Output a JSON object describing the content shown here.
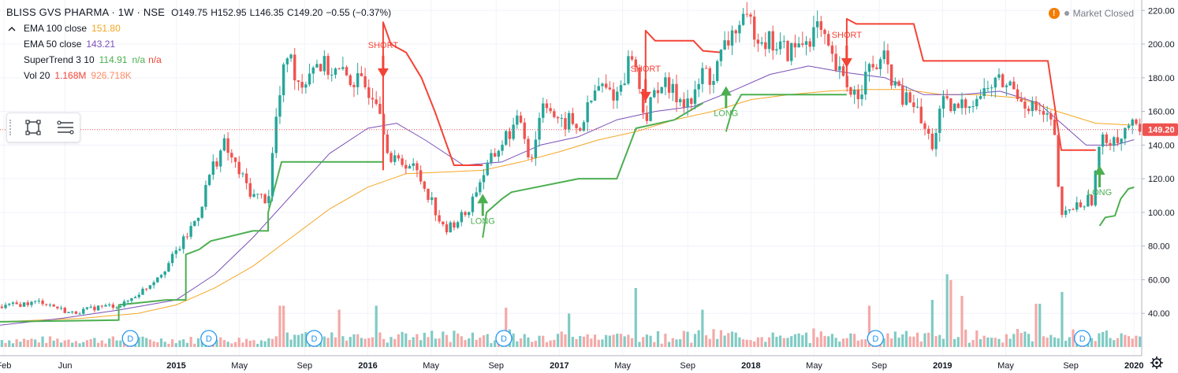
{
  "header": {
    "symbol": "BLISS GVS PHARMA · 1W · NSE",
    "open": "O149.75",
    "high": "H152.95",
    "low": "L146.35",
    "close": "C149.20",
    "change": "−0.55 (−0.37%)"
  },
  "status": {
    "alert_icon": "!",
    "text": "Market Closed"
  },
  "indicators": [
    {
      "name": "EMA 100 close",
      "values": [
        "151.80"
      ],
      "color": "#f5a623"
    },
    {
      "name": "EMA 50 close",
      "values": [
        "143.21"
      ],
      "color": "#7b4fb8"
    },
    {
      "name": "SuperTrend 3 10",
      "values": [
        "114.91",
        "n/a",
        "n/a"
      ],
      "color": "#4caf50",
      "alt_color": "#f44336"
    },
    {
      "name": "Vol 20",
      "values": [
        "1.168M",
        "926.718K"
      ],
      "color": "#f44336",
      "alt_color": "#ff8a65"
    }
  ],
  "colors": {
    "up": "#26a69a",
    "down": "#ef5350",
    "grid": "#f0f3fa",
    "price_line": "#ef5350",
    "axis_text": "#787b86"
  },
  "chart_data": {
    "type": "candlestick",
    "title": "BLISS GVS PHARMA · 1W · NSE",
    "ylim": [
      20,
      222
    ],
    "y_ticks": [
      40,
      60,
      80,
      100,
      120,
      140,
      160,
      180,
      200,
      220
    ],
    "y_tick_labels": [
      "40.00",
      "60.00",
      "80.00",
      "100.00",
      "120.00",
      "140.00",
      "160.00",
      "180.00",
      "200.00",
      "220.00"
    ],
    "last_price": 149.2,
    "last_price_label": "149.20",
    "x_start": 2014.08,
    "x_end": 2020.04,
    "x_ticks": [
      {
        "t": 2014.1,
        "label": "Feb",
        "bold": false
      },
      {
        "t": 2014.42,
        "label": "Jun",
        "bold": false
      },
      {
        "t": 2015.0,
        "label": "2015",
        "bold": true
      },
      {
        "t": 2015.33,
        "label": "May",
        "bold": false
      },
      {
        "t": 2015.67,
        "label": "Sep",
        "bold": false
      },
      {
        "t": 2016.0,
        "label": "2016",
        "bold": true
      },
      {
        "t": 2016.33,
        "label": "May",
        "bold": false
      },
      {
        "t": 2016.67,
        "label": "Sep",
        "bold": false
      },
      {
        "t": 2017.0,
        "label": "2017",
        "bold": true
      },
      {
        "t": 2017.33,
        "label": "May",
        "bold": false
      },
      {
        "t": 2017.67,
        "label": "Sep",
        "bold": false
      },
      {
        "t": 2018.0,
        "label": "2018",
        "bold": true
      },
      {
        "t": 2018.33,
        "label": "May",
        "bold": false
      },
      {
        "t": 2018.67,
        "label": "Sep",
        "bold": false
      },
      {
        "t": 2019.0,
        "label": "2019",
        "bold": true
      },
      {
        "t": 2019.33,
        "label": "May",
        "bold": false
      },
      {
        "t": 2019.67,
        "label": "Sep",
        "bold": false
      },
      {
        "t": 2020.0,
        "label": "2020",
        "bold": true
      }
    ],
    "close_anchors": [
      [
        2014.08,
        44
      ],
      [
        2014.3,
        47
      ],
      [
        2014.45,
        40
      ],
      [
        2014.6,
        44
      ],
      [
        2014.72,
        45
      ],
      [
        2014.85,
        56
      ],
      [
        2014.95,
        68
      ],
      [
        2015.05,
        85
      ],
      [
        2015.12,
        100
      ],
      [
        2015.18,
        125
      ],
      [
        2015.25,
        140
      ],
      [
        2015.32,
        125
      ],
      [
        2015.4,
        110
      ],
      [
        2015.48,
        108
      ],
      [
        2015.52,
        155
      ],
      [
        2015.58,
        195
      ],
      [
        2015.65,
        175
      ],
      [
        2015.72,
        190
      ],
      [
        2015.8,
        185
      ],
      [
        2015.9,
        180
      ],
      [
        2015.98,
        175
      ],
      [
        2016.05,
        170
      ],
      [
        2016.12,
        130
      ],
      [
        2016.2,
        130
      ],
      [
        2016.25,
        125
      ],
      [
        2016.33,
        108
      ],
      [
        2016.4,
        88
      ],
      [
        2016.46,
        95
      ],
      [
        2016.52,
        100
      ],
      [
        2016.58,
        118
      ],
      [
        2016.65,
        132
      ],
      [
        2016.72,
        145
      ],
      [
        2016.8,
        155
      ],
      [
        2016.85,
        130
      ],
      [
        2016.92,
        170
      ],
      [
        2017.0,
        150
      ],
      [
        2017.05,
        155
      ],
      [
        2017.1,
        148
      ],
      [
        2017.2,
        175
      ],
      [
        2017.3,
        170
      ],
      [
        2017.38,
        195
      ],
      [
        2017.45,
        155
      ],
      [
        2017.52,
        178
      ],
      [
        2017.6,
        170
      ],
      [
        2017.7,
        165
      ],
      [
        2017.75,
        185
      ],
      [
        2017.8,
        178
      ],
      [
        2017.85,
        195
      ],
      [
        2017.92,
        210
      ],
      [
        2018.0,
        212
      ],
      [
        2018.05,
        205
      ],
      [
        2018.12,
        200
      ],
      [
        2018.2,
        195
      ],
      [
        2018.28,
        202
      ],
      [
        2018.35,
        210
      ],
      [
        2018.42,
        190
      ],
      [
        2018.48,
        178
      ],
      [
        2018.55,
        170
      ],
      [
        2018.62,
        185
      ],
      [
        2018.7,
        190
      ],
      [
        2018.78,
        168
      ],
      [
        2018.85,
        165
      ],
      [
        2018.9,
        150
      ],
      [
        2018.95,
        140
      ],
      [
        2019.0,
        165
      ],
      [
        2019.05,
        160
      ],
      [
        2019.12,
        165
      ],
      [
        2019.2,
        170
      ],
      [
        2019.28,
        178
      ],
      [
        2019.36,
        175
      ],
      [
        2019.44,
        165
      ],
      [
        2019.5,
        160
      ],
      [
        2019.55,
        155
      ],
      [
        2019.58,
        150
      ],
      [
        2019.62,
        95
      ],
      [
        2019.66,
        102
      ],
      [
        2019.72,
        105
      ],
      [
        2019.78,
        108
      ],
      [
        2019.82,
        140
      ],
      [
        2019.88,
        145
      ],
      [
        2019.94,
        145
      ],
      [
        2019.97,
        153
      ],
      [
        2020.0,
        149
      ]
    ],
    "series": [
      {
        "name": "EMA 100 close",
        "type": "line",
        "color": "#f5a623",
        "points": [
          [
            2014.08,
            35
          ],
          [
            2014.5,
            37
          ],
          [
            2014.8,
            40
          ],
          [
            2015.0,
            45
          ],
          [
            2015.2,
            55
          ],
          [
            2015.4,
            68
          ],
          [
            2015.6,
            85
          ],
          [
            2015.8,
            102
          ],
          [
            2016.0,
            115
          ],
          [
            2016.2,
            123
          ],
          [
            2016.4,
            124
          ],
          [
            2016.6,
            125
          ],
          [
            2016.8,
            130
          ],
          [
            2017.0,
            136
          ],
          [
            2017.2,
            143
          ],
          [
            2017.4,
            148
          ],
          [
            2017.6,
            155
          ],
          [
            2017.8,
            160
          ],
          [
            2018.0,
            167
          ],
          [
            2018.2,
            170
          ],
          [
            2018.4,
            172
          ],
          [
            2018.6,
            173
          ],
          [
            2018.8,
            173
          ],
          [
            2019.0,
            170
          ],
          [
            2019.2,
            170
          ],
          [
            2019.4,
            168
          ],
          [
            2019.6,
            160
          ],
          [
            2019.8,
            153
          ],
          [
            2020.0,
            151.8
          ]
        ]
      },
      {
        "name": "EMA 50 close",
        "type": "line",
        "color": "#7b4fb8",
        "points": [
          [
            2014.08,
            33
          ],
          [
            2014.4,
            37
          ],
          [
            2014.7,
            42
          ],
          [
            2015.0,
            48
          ],
          [
            2015.2,
            63
          ],
          [
            2015.4,
            85
          ],
          [
            2015.6,
            110
          ],
          [
            2015.8,
            135
          ],
          [
            2016.0,
            150
          ],
          [
            2016.15,
            153
          ],
          [
            2016.3,
            143
          ],
          [
            2016.5,
            128
          ],
          [
            2016.7,
            130
          ],
          [
            2016.9,
            140
          ],
          [
            2017.1,
            145
          ],
          [
            2017.3,
            155
          ],
          [
            2017.5,
            160
          ],
          [
            2017.7,
            163
          ],
          [
            2017.9,
            172
          ],
          [
            2018.1,
            182
          ],
          [
            2018.3,
            187
          ],
          [
            2018.5,
            183
          ],
          [
            2018.7,
            180
          ],
          [
            2018.9,
            170
          ],
          [
            2019.1,
            170
          ],
          [
            2019.3,
            172
          ],
          [
            2019.5,
            165
          ],
          [
            2019.6,
            155
          ],
          [
            2019.75,
            140
          ],
          [
            2019.9,
            140
          ],
          [
            2020.0,
            143.21
          ]
        ]
      },
      {
        "name": "SuperTrend (long)",
        "type": "step",
        "color": "#4caf50",
        "points": [
          [
            2014.08,
            35
          ],
          [
            2014.7,
            36
          ],
          [
            2014.7,
            45
          ],
          [
            2014.95,
            48
          ],
          [
            2015.05,
            48
          ],
          [
            2015.05,
            75
          ],
          [
            2015.12,
            78
          ],
          [
            2015.18,
            83
          ],
          [
            2015.4,
            89
          ],
          [
            2015.48,
            89
          ],
          [
            2015.48,
            100
          ],
          [
            2015.55,
            130
          ],
          [
            2016.08,
            130
          ],
          [
            2016.08,
            null
          ],
          [
            2016.6,
            85
          ],
          [
            2016.62,
            100
          ],
          [
            2016.7,
            108
          ],
          [
            2016.75,
            112
          ],
          [
            2017.1,
            120
          ],
          [
            2017.3,
            120
          ],
          [
            2017.4,
            150
          ],
          [
            2017.6,
            155
          ],
          [
            2017.75,
            165
          ],
          [
            2017.8,
            null
          ],
          [
            2017.87,
            148
          ],
          [
            2017.9,
            160
          ],
          [
            2017.95,
            170
          ],
          [
            2018.5,
            170
          ],
          [
            2018.5,
            null
          ],
          [
            2019.82,
            92
          ],
          [
            2019.85,
            97
          ],
          [
            2019.9,
            98
          ],
          [
            2019.93,
            108
          ],
          [
            2019.97,
            114
          ],
          [
            2020.0,
            114.91
          ]
        ]
      },
      {
        "name": "SuperTrend (short)",
        "type": "step",
        "color": "#f44336",
        "points": [
          [
            2016.08,
            125
          ],
          [
            2016.08,
            213
          ],
          [
            2016.12,
            200
          ],
          [
            2016.2,
            195
          ],
          [
            2016.28,
            180
          ],
          [
            2016.35,
            160
          ],
          [
            2016.45,
            128
          ],
          [
            2016.6,
            128
          ],
          [
            2016.6,
            null
          ],
          [
            2017.45,
            165
          ],
          [
            2017.45,
            208
          ],
          [
            2017.5,
            202
          ],
          [
            2017.7,
            202
          ],
          [
            2017.75,
            196
          ],
          [
            2017.85,
            195
          ],
          [
            2017.87,
            null
          ],
          [
            2018.5,
            178
          ],
          [
            2018.5,
            215
          ],
          [
            2018.55,
            212
          ],
          [
            2018.85,
            212
          ],
          [
            2018.9,
            190
          ],
          [
            2019.55,
            190
          ],
          [
            2019.62,
            137
          ],
          [
            2019.8,
            137
          ],
          [
            2019.82,
            null
          ]
        ]
      },
      {
        "name": "Vol 20",
        "type": "volume"
      }
    ],
    "signals": [
      {
        "t": 2016.08,
        "y": 180,
        "label": "SHORT",
        "dir": "short"
      },
      {
        "t": 2016.6,
        "y": 111,
        "label": "LONG",
        "dir": "long"
      },
      {
        "t": 2017.45,
        "y": 166,
        "label": "SHORT",
        "dir": "short"
      },
      {
        "t": 2017.87,
        "y": 175,
        "label": "LONG",
        "dir": "long"
      },
      {
        "t": 2018.5,
        "y": 186,
        "label": "SHORT",
        "dir": "short"
      },
      {
        "t": 2019.82,
        "y": 128,
        "label": "LONG",
        "dir": "long"
      }
    ],
    "dividends": [
      {
        "t": 2014.76,
        "label": "D"
      },
      {
        "t": 2015.17,
        "label": "D"
      },
      {
        "t": 2015.72,
        "label": "D"
      },
      {
        "t": 2016.71,
        "label": "D"
      },
      {
        "t": 2018.65,
        "label": "D"
      },
      {
        "t": 2019.73,
        "label": "D"
      }
    ],
    "volume_spikes": [
      [
        2015.55,
        0.55
      ],
      [
        2015.85,
        0.45
      ],
      [
        2016.05,
        0.55
      ],
      [
        2016.72,
        0.5
      ],
      [
        2017.05,
        0.35
      ],
      [
        2017.4,
        1.0
      ],
      [
        2017.75,
        0.45
      ],
      [
        2018.62,
        0.55
      ],
      [
        2018.95,
        0.7
      ],
      [
        2019.02,
        1.35
      ],
      [
        2019.05,
        1.2
      ],
      [
        2019.1,
        0.8
      ],
      [
        2019.5,
        0.6
      ],
      [
        2019.62,
        0.9
      ]
    ]
  }
}
